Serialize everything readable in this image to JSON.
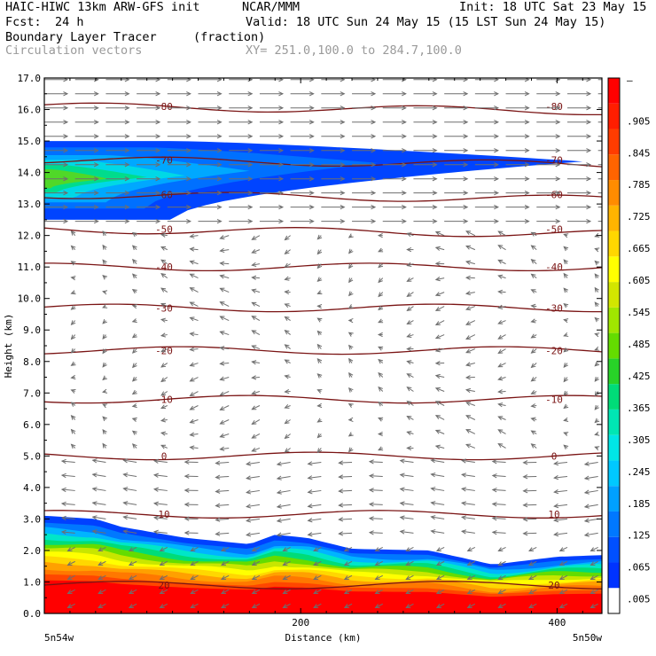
{
  "header": {
    "model_line": "HAIC-HIWC 13km ARW-GFS init",
    "org": "NCAR/MMM",
    "init": "Init: 18 UTC Sat 23 May 15",
    "fcst_label": "Fcst:",
    "fcst_value": "24 h",
    "valid": "Valid: 18 UTC Sun 24 May 15 (15 LST Sun 24 May 15)",
    "field_name": "Boundary Layer Tracer",
    "field_units": "(fraction)",
    "vectors_label": "Circulation vectors",
    "xy_range": "XY= 251.0,100.0 to 284.7,100.0"
  },
  "colors": {
    "contour": "#7a1414",
    "vector": "#6e6e6e",
    "colorbar": [
      "#ffffff",
      "#0033ff",
      "#0050ff",
      "#0078ff",
      "#00a0ff",
      "#00c8ff",
      "#00e6e6",
      "#00e6b4",
      "#00dc78",
      "#28d228",
      "#64dc00",
      "#a0e600",
      "#d2e600",
      "#ffff00",
      "#ffd700",
      "#ffb400",
      "#ff8c00",
      "#ff6400",
      "#ff3c00",
      "#ff1e00",
      "#ff0000"
    ]
  },
  "chart_data": {
    "type": "heatmap",
    "title": "Boundary Layer Tracer",
    "units": "(fraction)",
    "xlabel": "Distance (km)",
    "ylabel": "Height (km)",
    "xlim": [
      0,
      435
    ],
    "ylim": [
      0,
      17
    ],
    "x_ticks": [
      200,
      400
    ],
    "y_ticks": [
      "0.0",
      "1.0",
      "2.0",
      "3.0",
      "4.0",
      "5.0",
      "6.0",
      "7.0",
      "8.0",
      "9.0",
      "10.0",
      "11.0",
      "12.0",
      "13.0",
      "14.0",
      "15.0",
      "16.0",
      "17.0"
    ],
    "x_left_label": "5n54w",
    "x_right_label": "5n50w",
    "colorbar_labels": [
      ".005",
      ".065",
      ".125",
      ".185",
      ".245",
      ".305",
      ".365",
      ".425",
      ".485",
      ".545",
      ".605",
      ".665",
      ".725",
      ".785",
      ".845",
      ".905"
    ],
    "colorbar_top_mark": "–",
    "temperature_contours": [
      {
        "label": "20",
        "height_km": 0.9
      },
      {
        "label": "10",
        "height_km": 3.15
      },
      {
        "label": "0",
        "height_km": 5.0
      },
      {
        "label": "-10",
        "height_km": 6.8
      },
      {
        "label": "-20",
        "height_km": 8.35
      },
      {
        "label": "-30",
        "height_km": 9.7
      },
      {
        "label": "-40",
        "height_km": 11.0
      },
      {
        "label": "-50",
        "height_km": 12.2
      },
      {
        "label": "-60",
        "height_km": 13.3
      },
      {
        "label": "-70",
        "height_km": 14.4
      },
      {
        "label": "-80",
        "height_km": 16.1
      }
    ],
    "upper_layer": {
      "x_extent_km": [
        0,
        420
      ],
      "base_km": 12.5,
      "top_km": 15.0,
      "max_value": 0.6,
      "max_location_km": [
        0,
        13.8
      ]
    },
    "boundary_layer": {
      "surface_value": 1.0,
      "top_km_profile": [
        {
          "x": 0,
          "top": 3.1
        },
        {
          "x": 40,
          "top": 3.0
        },
        {
          "x": 60,
          "top": 2.75
        },
        {
          "x": 110,
          "top": 2.4
        },
        {
          "x": 160,
          "top": 2.2
        },
        {
          "x": 180,
          "top": 2.5
        },
        {
          "x": 205,
          "top": 2.4
        },
        {
          "x": 240,
          "top": 2.05
        },
        {
          "x": 300,
          "top": 2.0
        },
        {
          "x": 350,
          "top": 1.55
        },
        {
          "x": 400,
          "top": 1.8
        },
        {
          "x": 435,
          "top": 1.85
        }
      ]
    }
  }
}
